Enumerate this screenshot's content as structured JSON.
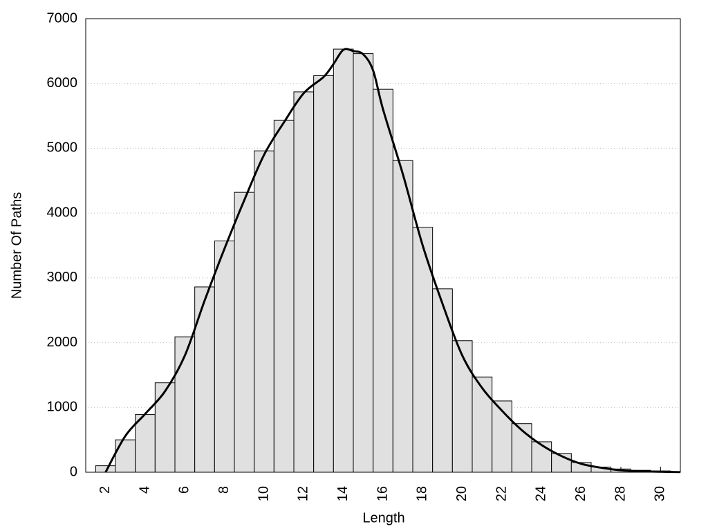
{
  "chart_data": {
    "type": "histogram",
    "x_label": "Length",
    "y_label": "Number Of Paths",
    "bins": [
      1.5,
      2.5,
      3.5,
      4.5,
      5.5,
      6.5,
      7.5,
      8.5,
      9.5,
      10.5,
      11.5,
      12.5,
      13.5,
      14.5,
      15.5,
      16.5,
      17.5,
      18.5,
      19.5,
      20.5,
      21.5,
      22.5,
      23.5,
      24.5,
      25.5,
      26.5,
      27.5,
      28.5,
      29.5,
      30.5
    ],
    "counts": [
      100,
      500,
      890,
      1380,
      2090,
      2860,
      3570,
      4320,
      4960,
      5430,
      5870,
      6120,
      6530,
      6460,
      5910,
      4810,
      3780,
      2830,
      2030,
      1470,
      1100,
      750,
      470,
      290,
      150,
      80,
      50,
      30,
      20
    ],
    "color": "#e0e0e0",
    "curve": {
      "color": "#000000",
      "x": [
        2,
        3,
        4,
        5,
        6,
        7,
        8,
        9,
        10,
        11,
        12,
        13,
        13.5,
        14,
        14.5,
        15,
        15.5,
        16,
        17,
        18,
        19,
        20,
        21,
        22,
        23,
        24,
        25,
        26,
        27,
        28,
        29,
        30,
        31
      ],
      "values": [
        0,
        560,
        900,
        1250,
        1800,
        2650,
        3450,
        4200,
        4900,
        5400,
        5850,
        6100,
        6300,
        6520,
        6500,
        6450,
        6200,
        5600,
        4600,
        3500,
        2600,
        1800,
        1300,
        950,
        650,
        420,
        250,
        130,
        70,
        30,
        15,
        8,
        2
      ]
    },
    "xlim": [
      1,
      31
    ],
    "xticks": [
      2,
      4,
      6,
      8,
      10,
      12,
      14,
      16,
      18,
      20,
      22,
      24,
      26,
      28,
      30
    ],
    "ylim": [
      0,
      7000
    ],
    "yticks": [
      0,
      1000,
      2000,
      3000,
      4000,
      5000,
      6000,
      7000
    ],
    "grid": true
  }
}
